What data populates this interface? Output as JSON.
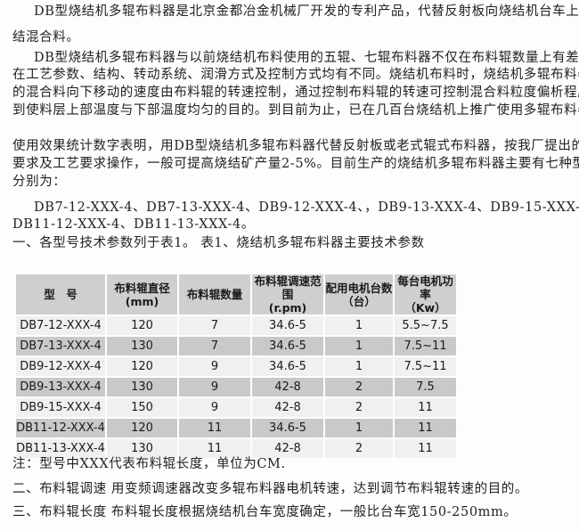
{
  "paragraphs": [
    "DB型烧结机多辊布料器是北京金都冶金机械厂开发的专利产品，代替反射板向烧结机台车上布烧",
    "结混合料。",
    "DB型烧结机多辊布料器与以前烧结机布料使用的五辊、七辊布料器不仅在布料辊数量上有差别，",
    "在工艺参数、结构、转动系统、润滑方式及控制方式均有不同。烧结机布料时，烧结机多辊布料器上",
    "的混合料向下移动的速度由布料辊的转速控制，通过控制布料辊的转速可控制混合料粒度偏析程度达",
    "到使料层上部温度与下部温度均匀的目的。到目前为止，已在几百台烧结机上推广使用多辊布料器，",
    "使用效果统计数字表明，用DB型烧结机多辊布料器代替反射板或老式辊式布料器，按我厂提出的安装",
    "要求及工艺要求操作，一般可提高烧结矿产量2-5%。目前生产的烧结机多辊布料器主要有七种型号，",
    "分别为：",
    "DB7-12-XXX-4、DB7-13-XXX-4、DB9-12-XXX-4、，DB9-13-XXX-4、DB9-15-XXX-4、",
    "DB11-12-XXX-4、DB11-13-XXX-4。",
    "一、各型号技术参数列于表1。    表1、烧结机多辊布料器主要技术参数"
  ],
  "table": {
    "headers": [
      [
        "型　号",
        ""
      ],
      [
        "布料辊直径",
        "(mm)"
      ],
      [
        "布料辊数量",
        ""
      ],
      [
        "布料辊调速范围",
        "(r.pm)"
      ],
      [
        "配用电机台数",
        "（台）"
      ],
      [
        "每台电机功率",
        "（Kw）"
      ]
    ],
    "rows": [
      [
        "DB7-12-XXX-4",
        "120",
        "7",
        "34.6-5",
        "1",
        "5.5~7.5"
      ],
      [
        "DB7-13-XXX-4",
        "130",
        "7",
        "34.6-5",
        "1",
        "7.5~11"
      ],
      [
        "DB9-12-XXX-4",
        "120",
        "9",
        "34.6-5",
        "1",
        "7.5~11"
      ],
      [
        "DB9-13-XXX-4",
        "130",
        "9",
        "42-8",
        "2",
        "7.5"
      ],
      [
        "DB9-15-XXX-4",
        "150",
        "9",
        "42-8",
        "2",
        "11"
      ],
      [
        "DB11-12-XXX-4",
        "120",
        "11",
        "34.6-5",
        "1",
        "11"
      ],
      [
        "DB11-13-XXX-4",
        "130",
        "11",
        "42-8",
        "2",
        "11"
      ]
    ]
  },
  "notes": [
    "注：型号中XXX代表布料辊长度，单位为CM.",
    "二、布料辊调速    用变频调速器改变多辊布料器电机转速，达到调节布料辊转速的目的。",
    "三、布料辊长度    布料辊长度根据烧结机台车宽度确定，一般比台车宽150-250mm。"
  ]
}
